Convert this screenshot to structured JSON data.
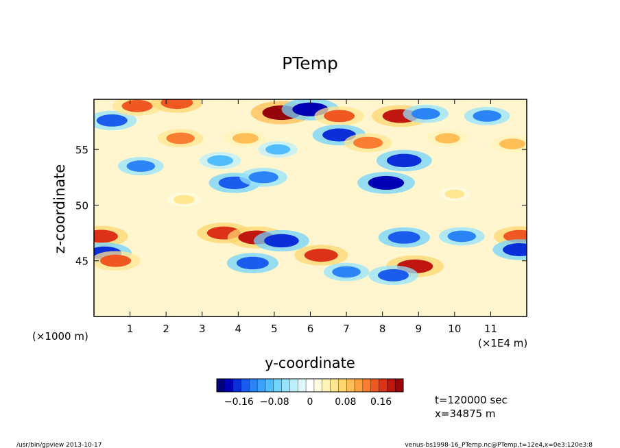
{
  "chart_data": {
    "type": "heatmap",
    "title": "PTemp",
    "xlabel": "y-coordinate",
    "ylabel": "z-coordinate",
    "x_unit_label": "(×1E4 m)",
    "y_unit_label": "(×1000 m)",
    "xlim": [
      0,
      12
    ],
    "ylim": [
      40,
      59.5
    ],
    "x_ticks": [
      1,
      2,
      3,
      4,
      5,
      6,
      7,
      8,
      9,
      10,
      11
    ],
    "y_ticks": [
      45,
      50,
      55
    ],
    "colorbar": {
      "min": -0.21,
      "max": 0.21,
      "tick_labels": [
        "−0.16",
        "−0.08",
        "0",
        "0.08",
        "0.16"
      ],
      "tick_values": [
        -0.16,
        -0.08,
        0,
        0.08,
        0.16
      ],
      "colors": [
        "#00007a",
        "#0000b4",
        "#0a2ed8",
        "#1c5cec",
        "#2a84f6",
        "#3aa2fb",
        "#52bdfc",
        "#72d3fc",
        "#96e3fc",
        "#bbeffb",
        "#ddf7fb",
        "#ffffff",
        "#fffbe0",
        "#fff3b8",
        "#ffe690",
        "#ffd670",
        "#ffbe55",
        "#ffa040",
        "#fb7d30",
        "#f05822",
        "#dc3318",
        "#bf1610",
        "#96050a"
      ]
    },
    "annotations": {
      "time": "t=120000 sec",
      "x_position": "x=34875 m"
    },
    "features": [
      {
        "y": 0.5,
        "z": 57.6,
        "value": -0.14
      },
      {
        "y": 1.2,
        "z": 58.9,
        "value": 0.14
      },
      {
        "y": 2.3,
        "z": 59.2,
        "value": 0.15
      },
      {
        "y": 2.4,
        "z": 56.0,
        "value": 0.12
      },
      {
        "y": 1.3,
        "z": 53.5,
        "value": -0.12
      },
      {
        "y": 3.5,
        "z": 54.0,
        "value": -0.1
      },
      {
        "y": 4.2,
        "z": 56.0,
        "value": 0.1
      },
      {
        "y": 3.9,
        "z": 52.0,
        "value": -0.15
      },
      {
        "y": 4.7,
        "z": 52.5,
        "value": -0.13
      },
      {
        "y": 5.2,
        "z": 58.3,
        "value": 0.2
      },
      {
        "y": 5.1,
        "z": 55.0,
        "value": -0.09
      },
      {
        "y": 6.0,
        "z": 58.6,
        "value": -0.18
      },
      {
        "y": 6.8,
        "z": 58.0,
        "value": 0.14
      },
      {
        "y": 6.8,
        "z": 56.3,
        "value": -0.16
      },
      {
        "y": 7.6,
        "z": 55.6,
        "value": 0.13
      },
      {
        "y": 8.1,
        "z": 52.0,
        "value": -0.18
      },
      {
        "y": 8.6,
        "z": 54.0,
        "value": -0.17
      },
      {
        "y": 8.5,
        "z": 58.0,
        "value": 0.18
      },
      {
        "y": 9.2,
        "z": 58.2,
        "value": -0.12
      },
      {
        "y": 9.8,
        "z": 56.0,
        "value": 0.09
      },
      {
        "y": 10.9,
        "z": 58.0,
        "value": -0.12
      },
      {
        "y": 11.6,
        "z": 55.5,
        "value": 0.1
      },
      {
        "y": 0.2,
        "z": 47.2,
        "value": 0.16
      },
      {
        "y": 0.3,
        "z": 45.7,
        "value": -0.16
      },
      {
        "y": 0.6,
        "z": 45.0,
        "value": 0.14
      },
      {
        "y": 3.6,
        "z": 47.5,
        "value": 0.16
      },
      {
        "y": 4.5,
        "z": 47.1,
        "value": 0.18
      },
      {
        "y": 5.2,
        "z": 46.8,
        "value": -0.17
      },
      {
        "y": 4.4,
        "z": 44.8,
        "value": -0.15
      },
      {
        "y": 6.3,
        "z": 45.5,
        "value": 0.16
      },
      {
        "y": 7.0,
        "z": 44.0,
        "value": -0.12
      },
      {
        "y": 8.6,
        "z": 47.1,
        "value": -0.15
      },
      {
        "y": 8.9,
        "z": 44.5,
        "value": 0.18
      },
      {
        "y": 8.3,
        "z": 43.7,
        "value": -0.14
      },
      {
        "y": 10.2,
        "z": 47.2,
        "value": -0.12
      },
      {
        "y": 11.8,
        "z": 47.2,
        "value": 0.15
      },
      {
        "y": 11.8,
        "z": 46.0,
        "value": -0.16
      },
      {
        "y": 2.5,
        "z": 50.5,
        "value": 0.06
      },
      {
        "y": 10.0,
        "z": 51.0,
        "value": 0.05
      }
    ],
    "grid": false,
    "legend": "colorbar bottom-center"
  },
  "footer": {
    "left": "/usr/bin/gpview   2013-10-17",
    "right": "venus-bs1998-16_PTemp.nc@PTemp,t=12e4,x=0e3:120e3:8"
  }
}
